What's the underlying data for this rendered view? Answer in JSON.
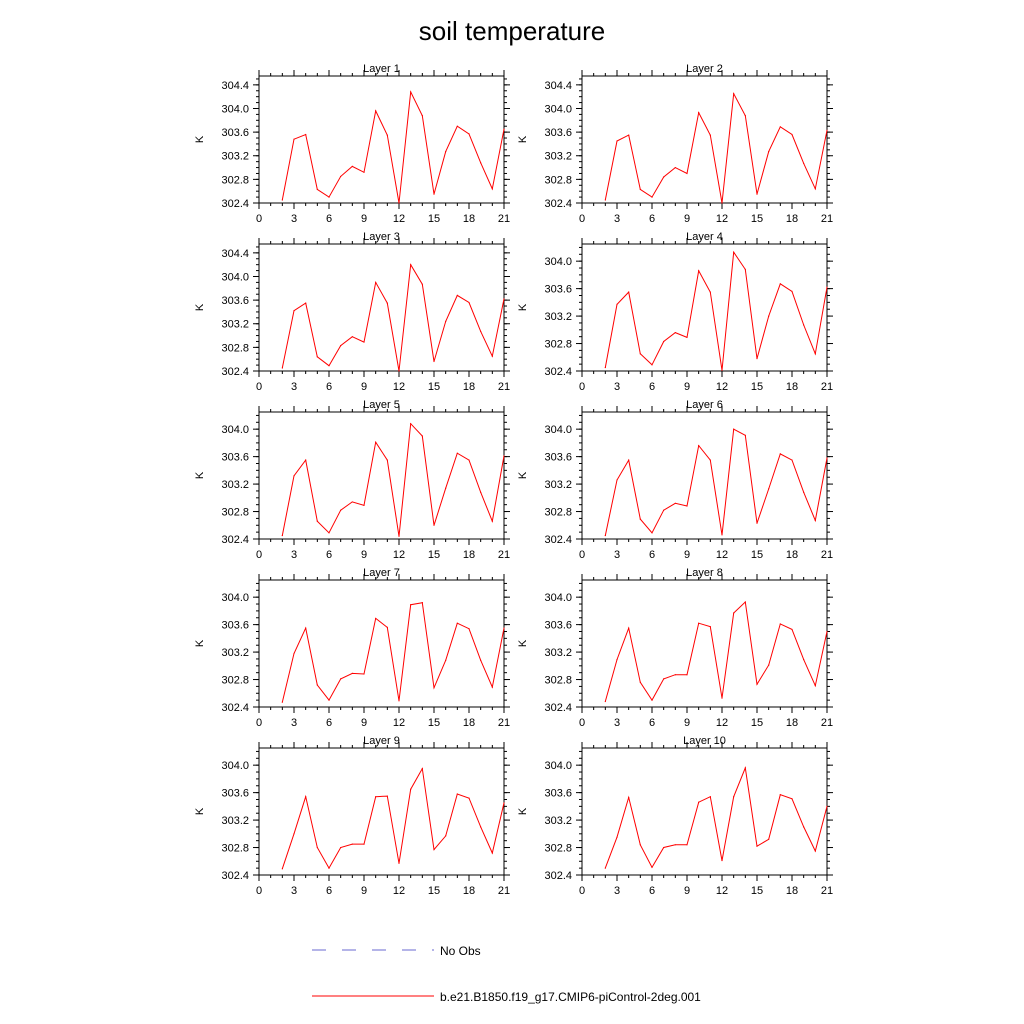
{
  "title": "soil temperature",
  "legend": {
    "entries": [
      {
        "label": "No Obs",
        "color": "#6a6ad0",
        "dashed": true
      },
      {
        "label": "b.e21.B1850.f19_g17.CMIP6-piControl-2deg.001",
        "color": "#ff0000",
        "dashed": false
      }
    ]
  },
  "chart_data": [
    {
      "type": "line",
      "title": "Layer 1",
      "ylabel": "K",
      "xlim": [
        0,
        21
      ],
      "ylim": [
        302.4,
        304.55
      ],
      "xticks": [
        0,
        3,
        6,
        9,
        12,
        15,
        18,
        21
      ],
      "yticks": [
        302.4,
        302.8,
        303.2,
        303.6,
        304.0,
        304.4
      ],
      "ytick_labels": [
        "302.4",
        "302.8",
        "303.2",
        "303.6",
        "304.0",
        "304.4"
      ],
      "x": [
        2,
        3,
        4,
        5,
        6,
        7,
        8,
        9,
        10,
        11,
        12,
        13,
        14,
        15,
        16,
        17,
        18,
        19,
        20,
        21
      ],
      "series": [
        {
          "color": "#ff0000",
          "values": [
            302.45,
            303.48,
            303.56,
            302.63,
            302.5,
            302.85,
            303.02,
            302.92,
            303.96,
            303.55,
            302.4,
            304.28,
            303.88,
            302.55,
            303.27,
            303.7,
            303.57,
            303.08,
            302.64,
            303.65
          ]
        }
      ]
    },
    {
      "type": "line",
      "title": "Layer 2",
      "ylabel": "K",
      "xlim": [
        0,
        21
      ],
      "ylim": [
        302.4,
        304.55
      ],
      "xticks": [
        0,
        3,
        6,
        9,
        12,
        15,
        18,
        21
      ],
      "yticks": [
        302.4,
        302.8,
        303.2,
        303.6,
        304.0,
        304.4
      ],
      "ytick_labels": [
        "302.4",
        "302.8",
        "303.2",
        "303.6",
        "304.0",
        "304.4"
      ],
      "x": [
        2,
        3,
        4,
        5,
        6,
        7,
        8,
        9,
        10,
        11,
        12,
        13,
        14,
        15,
        16,
        17,
        18,
        19,
        20,
        21
      ],
      "series": [
        {
          "color": "#ff0000",
          "values": [
            302.45,
            303.45,
            303.55,
            302.63,
            302.5,
            302.84,
            303.0,
            302.9,
            303.93,
            303.55,
            302.4,
            304.25,
            303.88,
            302.55,
            303.27,
            303.69,
            303.56,
            303.07,
            302.64,
            303.63
          ]
        }
      ]
    },
    {
      "type": "line",
      "title": "Layer 3",
      "ylabel": "K",
      "xlim": [
        0,
        21
      ],
      "ylim": [
        302.4,
        304.55
      ],
      "xticks": [
        0,
        3,
        6,
        9,
        12,
        15,
        18,
        21
      ],
      "yticks": [
        302.4,
        302.8,
        303.2,
        303.6,
        304.0,
        304.4
      ],
      "ytick_labels": [
        "302.4",
        "302.8",
        "303.2",
        "303.6",
        "304.0",
        "304.4"
      ],
      "x": [
        2,
        3,
        4,
        5,
        6,
        7,
        8,
        9,
        10,
        11,
        12,
        13,
        14,
        15,
        16,
        17,
        18,
        19,
        20,
        21
      ],
      "series": [
        {
          "color": "#ff0000",
          "values": [
            302.45,
            303.42,
            303.55,
            302.64,
            302.49,
            302.83,
            302.98,
            302.89,
            303.9,
            303.55,
            302.4,
            304.2,
            303.87,
            302.56,
            303.24,
            303.68,
            303.56,
            303.07,
            302.65,
            303.62
          ]
        }
      ]
    },
    {
      "type": "line",
      "title": "Layer 4",
      "ylabel": "K",
      "xlim": [
        0,
        21
      ],
      "ylim": [
        302.4,
        304.25
      ],
      "xticks": [
        0,
        3,
        6,
        9,
        12,
        15,
        18,
        21
      ],
      "yticks": [
        302.4,
        302.8,
        303.2,
        303.6,
        304.0
      ],
      "ytick_labels": [
        "302.4",
        "302.8",
        "303.2",
        "303.6",
        "304.0"
      ],
      "x": [
        2,
        3,
        4,
        5,
        6,
        7,
        8,
        9,
        10,
        11,
        12,
        13,
        14,
        15,
        16,
        17,
        18,
        19,
        20,
        21
      ],
      "series": [
        {
          "color": "#ff0000",
          "values": [
            302.45,
            303.37,
            303.55,
            302.65,
            302.49,
            302.83,
            302.96,
            302.89,
            303.86,
            303.55,
            302.41,
            304.13,
            303.88,
            302.58,
            303.2,
            303.67,
            303.56,
            303.07,
            302.65,
            303.62
          ]
        }
      ]
    },
    {
      "type": "line",
      "title": "Layer 5",
      "ylabel": "K",
      "xlim": [
        0,
        21
      ],
      "ylim": [
        302.4,
        304.25
      ],
      "xticks": [
        0,
        3,
        6,
        9,
        12,
        15,
        18,
        21
      ],
      "yticks": [
        302.4,
        302.8,
        303.2,
        303.6,
        304.0
      ],
      "ytick_labels": [
        "302.4",
        "302.8",
        "303.2",
        "303.6",
        "304.0"
      ],
      "x": [
        2,
        3,
        4,
        5,
        6,
        7,
        8,
        9,
        10,
        11,
        12,
        13,
        14,
        15,
        16,
        17,
        18,
        19,
        20,
        21
      ],
      "series": [
        {
          "color": "#ff0000",
          "values": [
            302.45,
            303.32,
            303.55,
            302.66,
            302.49,
            302.82,
            302.94,
            302.89,
            303.81,
            303.55,
            302.44,
            304.08,
            303.9,
            302.6,
            303.14,
            303.65,
            303.55,
            303.08,
            302.66,
            303.61
          ]
        }
      ]
    },
    {
      "type": "line",
      "title": "Layer 6",
      "ylabel": "K",
      "xlim": [
        0,
        21
      ],
      "ylim": [
        302.4,
        304.25
      ],
      "xticks": [
        0,
        3,
        6,
        9,
        12,
        15,
        18,
        21
      ],
      "yticks": [
        302.4,
        302.8,
        303.2,
        303.6,
        304.0
      ],
      "ytick_labels": [
        "302.4",
        "302.8",
        "303.2",
        "303.6",
        "304.0"
      ],
      "x": [
        2,
        3,
        4,
        5,
        6,
        7,
        8,
        9,
        10,
        11,
        12,
        13,
        14,
        15,
        16,
        17,
        18,
        19,
        20,
        21
      ],
      "series": [
        {
          "color": "#ff0000",
          "values": [
            302.45,
            303.26,
            303.55,
            302.69,
            302.49,
            302.82,
            302.92,
            302.88,
            303.76,
            303.55,
            302.46,
            304.0,
            303.91,
            302.63,
            303.13,
            303.64,
            303.55,
            303.08,
            302.67,
            303.58
          ]
        }
      ]
    },
    {
      "type": "line",
      "title": "Layer 7",
      "ylabel": "K",
      "xlim": [
        0,
        21
      ],
      "ylim": [
        302.4,
        304.25
      ],
      "xticks": [
        0,
        3,
        6,
        9,
        12,
        15,
        18,
        21
      ],
      "yticks": [
        302.4,
        302.8,
        303.2,
        303.6,
        304.0
      ],
      "ytick_labels": [
        "302.4",
        "302.8",
        "303.2",
        "303.6",
        "304.0"
      ],
      "x": [
        2,
        3,
        4,
        5,
        6,
        7,
        8,
        9,
        10,
        11,
        12,
        13,
        14,
        15,
        16,
        17,
        18,
        19,
        20,
        21
      ],
      "series": [
        {
          "color": "#ff0000",
          "values": [
            302.47,
            303.18,
            303.55,
            302.72,
            302.5,
            302.81,
            302.89,
            302.88,
            303.69,
            303.56,
            302.49,
            303.89,
            303.92,
            302.68,
            303.08,
            303.62,
            303.54,
            303.08,
            302.69,
            303.55
          ]
        }
      ]
    },
    {
      "type": "line",
      "title": "Layer 8",
      "ylabel": "K",
      "xlim": [
        0,
        21
      ],
      "ylim": [
        302.4,
        304.25
      ],
      "xticks": [
        0,
        3,
        6,
        9,
        12,
        15,
        18,
        21
      ],
      "yticks": [
        302.4,
        302.8,
        303.2,
        303.6,
        304.0
      ],
      "ytick_labels": [
        "302.4",
        "302.8",
        "303.2",
        "303.6",
        "304.0"
      ],
      "x": [
        2,
        3,
        4,
        5,
        6,
        7,
        8,
        9,
        10,
        11,
        12,
        13,
        14,
        15,
        16,
        17,
        18,
        19,
        20,
        21
      ],
      "series": [
        {
          "color": "#ff0000",
          "values": [
            302.48,
            303.09,
            303.55,
            302.76,
            302.5,
            302.81,
            302.87,
            302.87,
            303.62,
            303.57,
            302.53,
            303.77,
            303.93,
            302.73,
            303.01,
            303.61,
            303.53,
            303.09,
            302.71,
            303.5
          ]
        }
      ]
    },
    {
      "type": "line",
      "title": "Layer 9",
      "ylabel": "K",
      "xlim": [
        0,
        21
      ],
      "ylim": [
        302.4,
        304.25
      ],
      "xticks": [
        0,
        3,
        6,
        9,
        12,
        15,
        18,
        21
      ],
      "yticks": [
        302.4,
        302.8,
        303.2,
        303.6,
        304.0
      ],
      "ytick_labels": [
        "302.4",
        "302.8",
        "303.2",
        "303.6",
        "304.0"
      ],
      "x": [
        2,
        3,
        4,
        5,
        6,
        7,
        8,
        9,
        10,
        11,
        12,
        13,
        14,
        15,
        16,
        17,
        18,
        19,
        20,
        21
      ],
      "series": [
        {
          "color": "#ff0000",
          "values": [
            302.49,
            303.0,
            303.54,
            302.8,
            302.5,
            302.8,
            302.85,
            302.85,
            303.54,
            303.55,
            302.57,
            303.65,
            303.95,
            302.77,
            302.97,
            303.58,
            303.52,
            303.1,
            302.72,
            303.45
          ]
        }
      ]
    },
    {
      "type": "line",
      "title": "Layer 10",
      "ylabel": "K",
      "xlim": [
        0,
        21
      ],
      "ylim": [
        302.4,
        304.25
      ],
      "xticks": [
        0,
        3,
        6,
        9,
        12,
        15,
        18,
        21
      ],
      "yticks": [
        302.4,
        302.8,
        303.2,
        303.6,
        304.0
      ],
      "ytick_labels": [
        "302.4",
        "302.8",
        "303.2",
        "303.6",
        "304.0"
      ],
      "x": [
        2,
        3,
        4,
        5,
        6,
        7,
        8,
        9,
        10,
        11,
        12,
        13,
        14,
        15,
        16,
        17,
        18,
        19,
        20,
        21
      ],
      "series": [
        {
          "color": "#ff0000",
          "values": [
            302.5,
            302.95,
            303.53,
            302.84,
            302.51,
            302.8,
            302.84,
            302.84,
            303.46,
            303.54,
            302.61,
            303.54,
            303.96,
            302.82,
            302.92,
            303.57,
            303.51,
            303.1,
            302.75,
            303.4
          ]
        }
      ]
    }
  ]
}
